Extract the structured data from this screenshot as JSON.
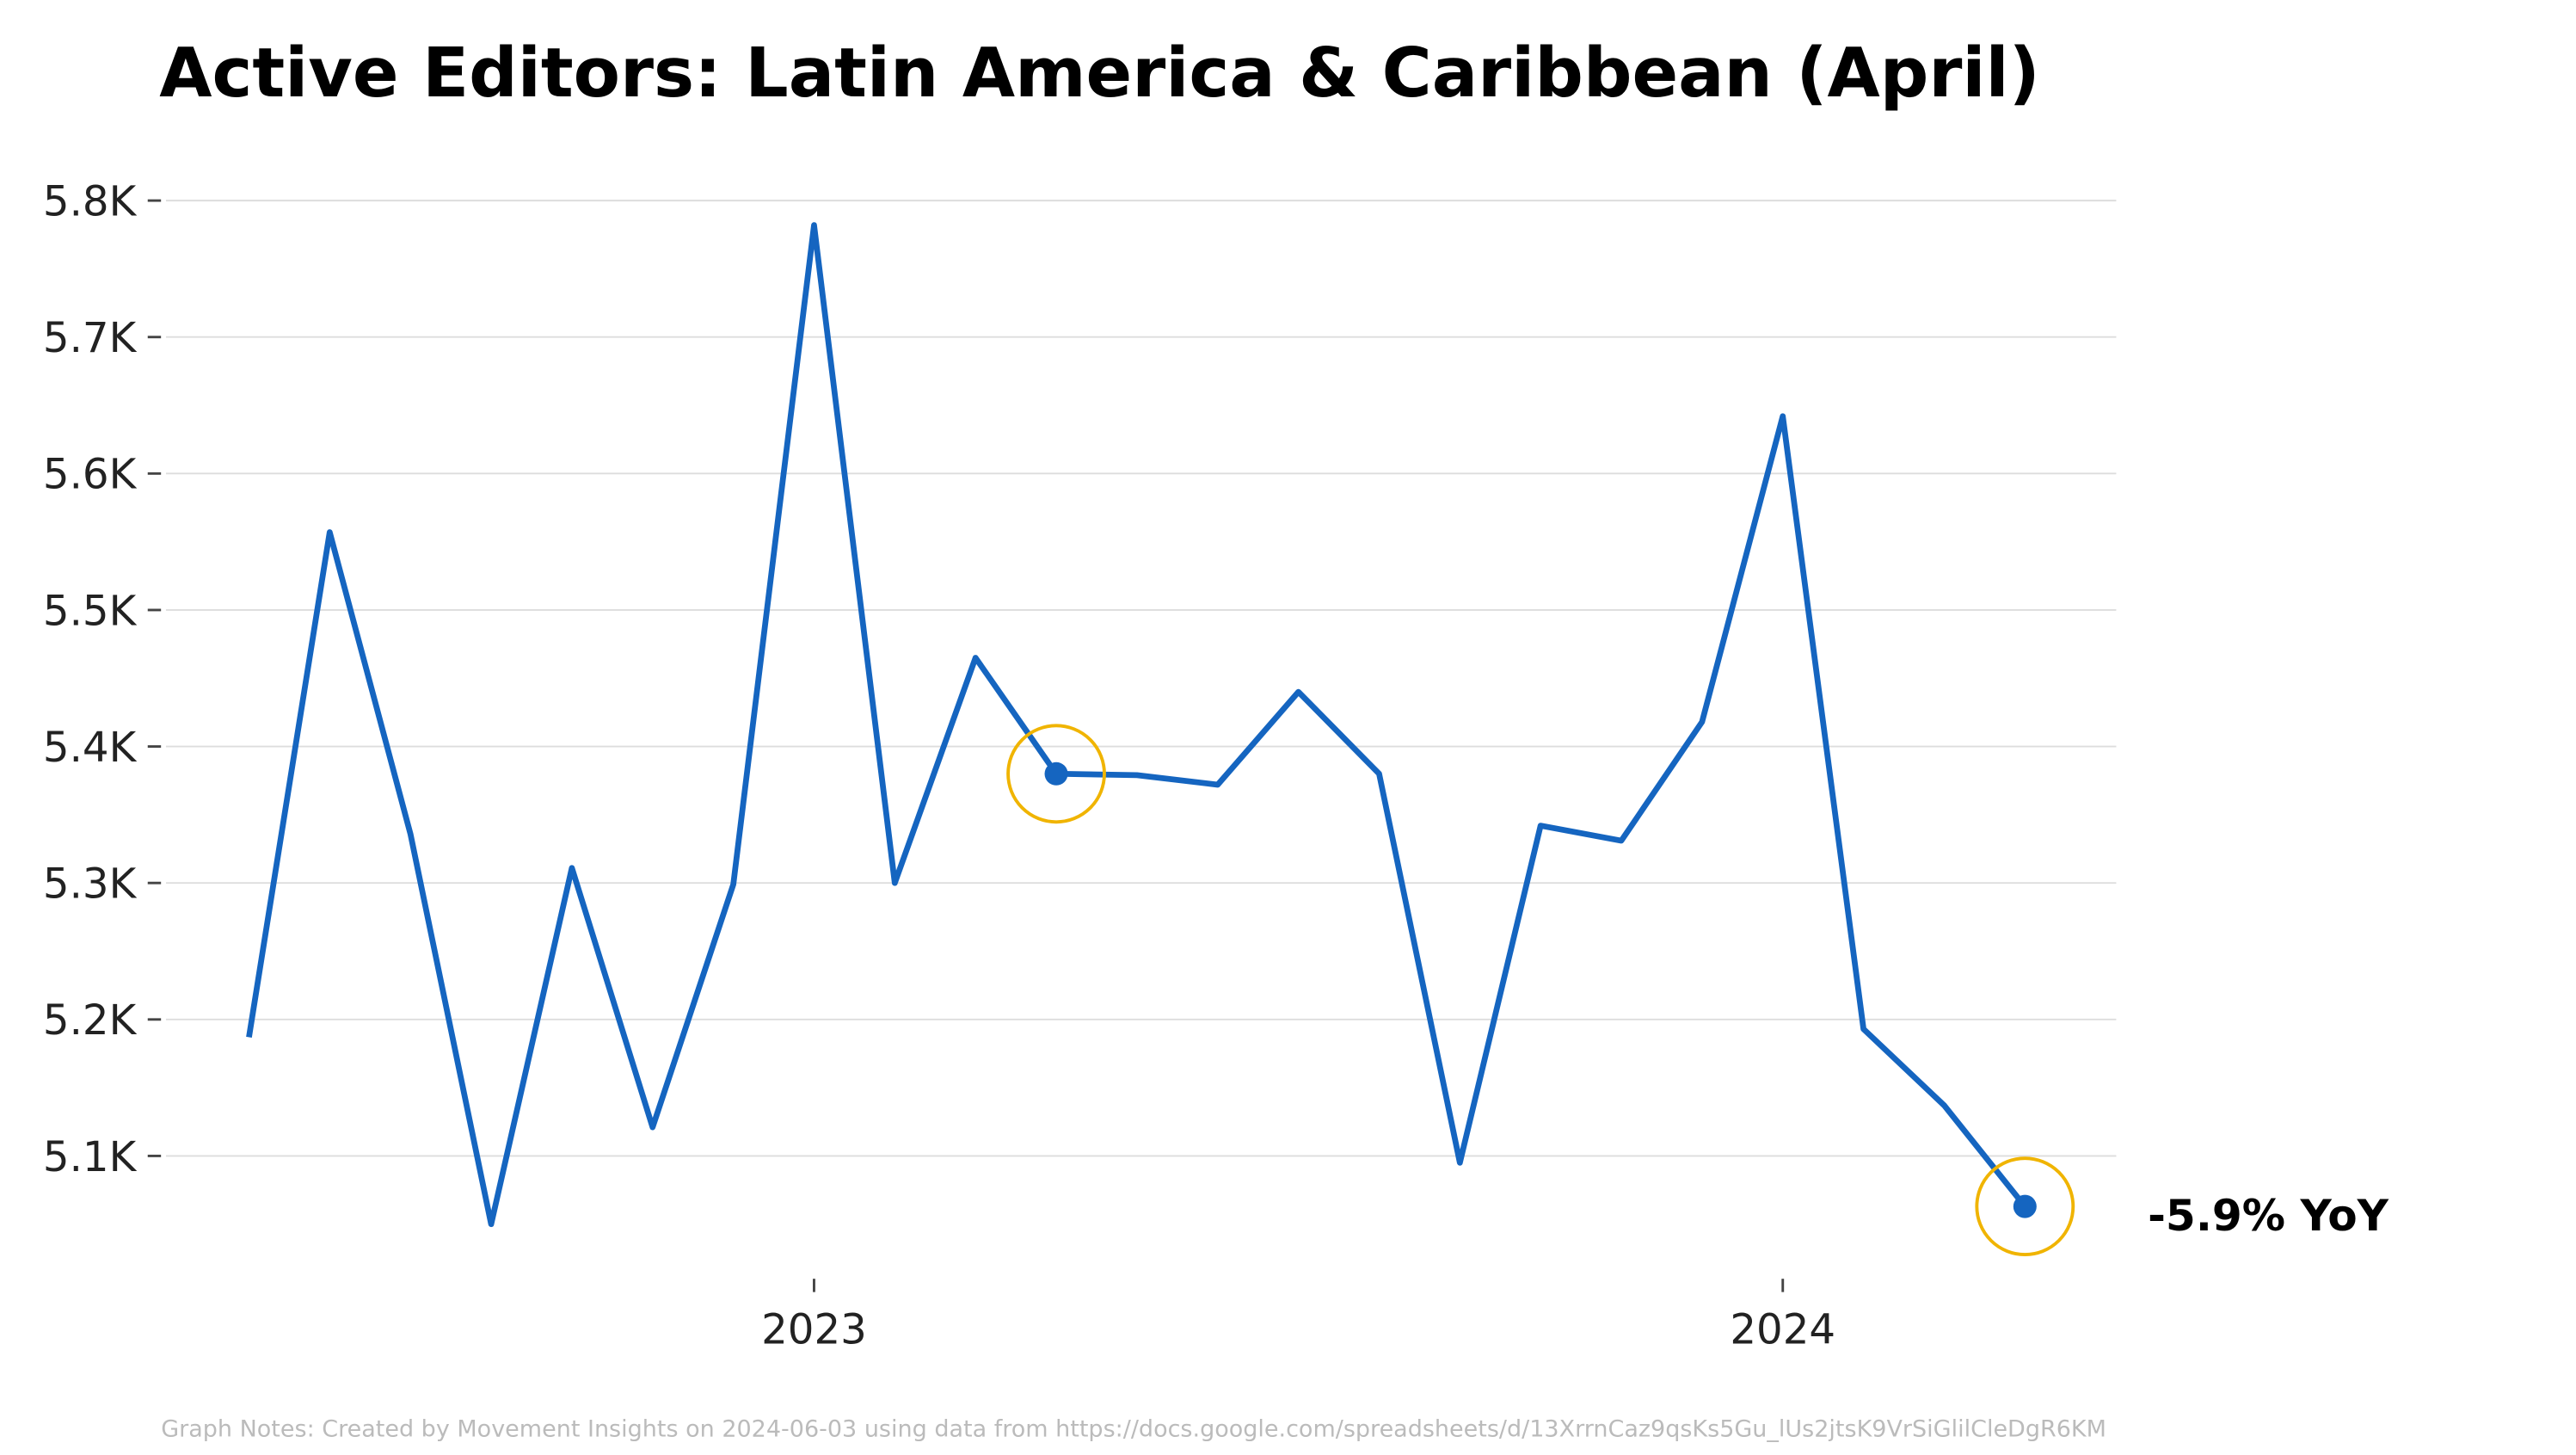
{
  "chart_data": {
    "type": "line",
    "title": "Active Editors: Latin America & Caribbean (April)",
    "x": [
      "2022-06",
      "2022-07",
      "2022-08",
      "2022-09",
      "2022-10",
      "2022-11",
      "2022-12",
      "2023-01",
      "2023-02",
      "2023-03",
      "2023-04",
      "2023-05",
      "2023-06",
      "2023-07",
      "2023-08",
      "2023-09",
      "2023-10",
      "2023-11",
      "2023-12",
      "2024-01",
      "2024-02",
      "2024-03",
      "2024-04"
    ],
    "series": [
      {
        "name": "Active Editors",
        "color": "#1565c0",
        "values": [
          5187,
          5557,
          5336,
          5050,
          5311,
          5121,
          5299,
          5782,
          5300,
          5465,
          5380,
          5379,
          5372,
          5440,
          5380,
          5095,
          5342,
          5331,
          5418,
          5642,
          5193,
          5137,
          5063
        ]
      }
    ],
    "highlight_color": "#f0b400",
    "ylim": [
      5010,
      5830
    ],
    "yticks": [
      {
        "value": 5100,
        "label": "5.1K"
      },
      {
        "value": 5200,
        "label": "5.2K"
      },
      {
        "value": 5300,
        "label": "5.3K"
      },
      {
        "value": 5400,
        "label": "5.4K"
      },
      {
        "value": 5500,
        "label": "5.5K"
      },
      {
        "value": 5600,
        "label": "5.6K"
      },
      {
        "value": 5700,
        "label": "5.7K"
      },
      {
        "value": 5800,
        "label": "5.8K"
      }
    ],
    "xticks": [
      {
        "value": "2023-01",
        "label": "2023"
      },
      {
        "value": "2024-01",
        "label": "2024"
      }
    ],
    "grid": true,
    "annotation": "-5.9% YoY",
    "note": "Graph Notes: Created by Movement Insights on 2024-06-03 using data from https://docs.google.com/spreadsheets/d/13XrrnCaz9qsKs5Gu_lUs2jtsK9VrSiGlilCleDgR6KM"
  }
}
